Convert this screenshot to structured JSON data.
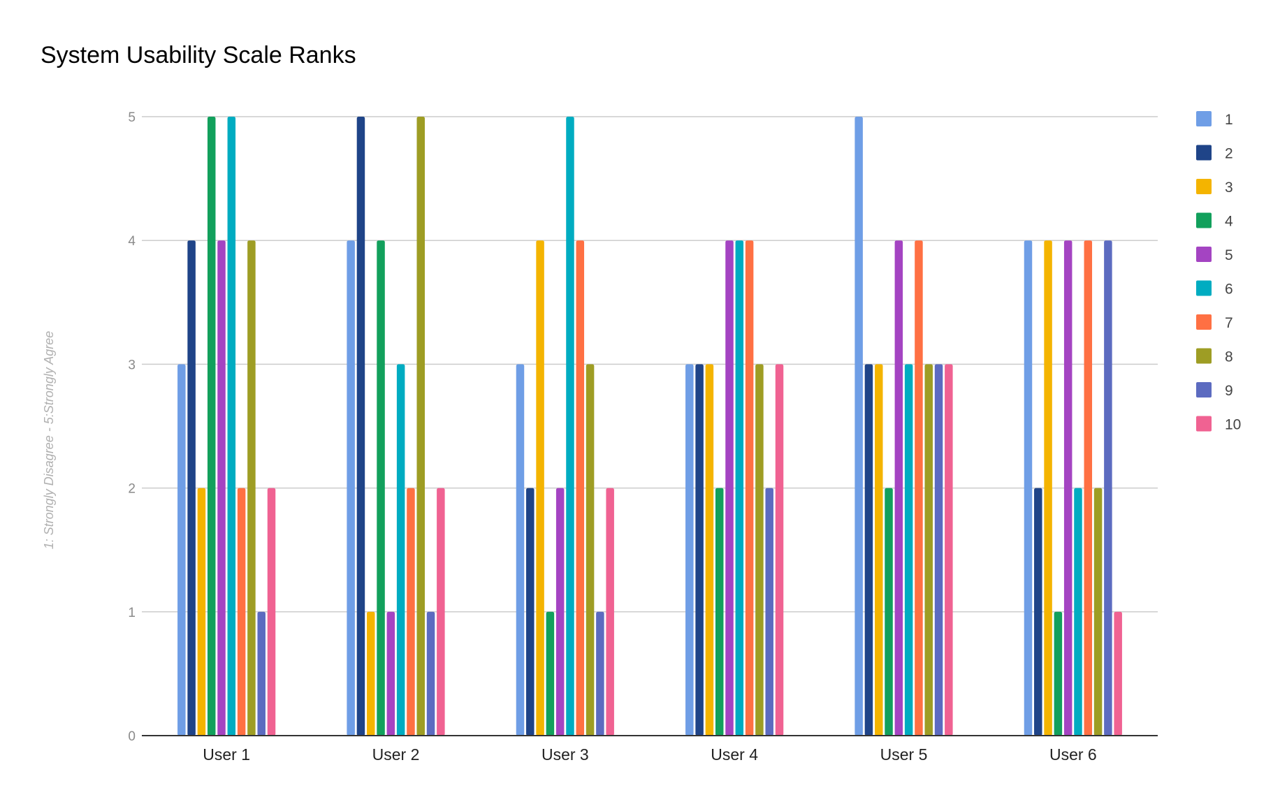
{
  "chart_data": {
    "type": "bar",
    "title": "System Usability Scale Ranks",
    "xlabel": "",
    "ylabel": "1: Strongly Disagree - 5:Strongly Agree",
    "ylim": [
      0,
      5
    ],
    "yticks": [
      "0",
      "1",
      "2",
      "3",
      "4",
      "5"
    ],
    "grid": true,
    "legend_position": "right",
    "categories": [
      "User 1",
      "User 2",
      "User 3",
      "User 4",
      "User 5",
      "User 6"
    ],
    "series": [
      {
        "name": "1",
        "color": "#6f9ee6",
        "values": [
          3,
          4,
          3,
          3,
          5,
          4
        ]
      },
      {
        "name": "2",
        "color": "#1f4488",
        "values": [
          4,
          5,
          2,
          3,
          3,
          2
        ]
      },
      {
        "name": "3",
        "color": "#f4b400",
        "values": [
          2,
          1,
          4,
          3,
          3,
          4
        ]
      },
      {
        "name": "4",
        "color": "#12a05c",
        "values": [
          5,
          4,
          1,
          2,
          2,
          1
        ]
      },
      {
        "name": "5",
        "color": "#a444c2",
        "values": [
          4,
          1,
          2,
          4,
          4,
          4
        ]
      },
      {
        "name": "6",
        "color": "#00acc1",
        "values": [
          5,
          3,
          5,
          4,
          3,
          2
        ]
      },
      {
        "name": "7",
        "color": "#ff7043",
        "values": [
          2,
          2,
          4,
          4,
          4,
          4
        ]
      },
      {
        "name": "8",
        "color": "#9e9d24",
        "values": [
          4,
          5,
          3,
          3,
          3,
          2
        ]
      },
      {
        "name": "9",
        "color": "#5c6bc0",
        "values": [
          1,
          1,
          1,
          2,
          3,
          4
        ]
      },
      {
        "name": "10",
        "color": "#f06292",
        "values": [
          2,
          2,
          2,
          3,
          3,
          1
        ]
      }
    ]
  }
}
